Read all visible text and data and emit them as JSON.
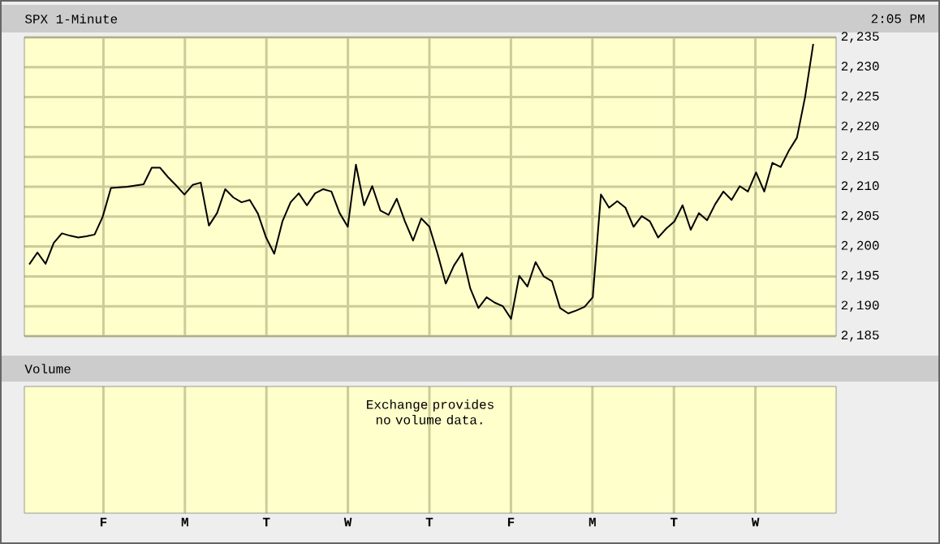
{
  "chart_data": [
    {
      "type": "line",
      "title": "SPX 1-Minute",
      "subtitle": "2:05 PM",
      "categories": [
        null,
        null,
        null,
        null,
        null,
        null,
        null,
        null,
        null,
        null,
        null,
        null,
        null,
        null,
        null,
        null,
        null,
        null,
        null,
        null,
        null,
        null,
        null,
        null,
        null,
        null,
        null,
        null,
        null,
        null,
        null,
        null,
        null,
        null,
        null,
        null,
        null,
        null,
        null,
        null,
        null,
        null,
        null,
        null,
        null,
        null,
        null,
        null,
        null,
        null,
        null,
        null,
        null,
        null,
        null,
        null,
        null,
        null,
        null,
        null,
        null,
        null,
        null,
        null,
        null,
        null,
        null,
        null,
        null,
        null,
        null,
        null,
        null,
        null,
        null,
        null,
        null,
        null,
        null,
        null,
        null,
        null,
        null,
        null,
        null,
        null,
        null,
        null,
        null,
        null,
        null,
        null,
        null,
        null,
        null,
        null,
        null
      ],
      "series": [
        {
          "color": "#000000",
          "values": [
            2197.0,
            2199.0,
            2197.1,
            2200.6,
            2202.2,
            2201.8,
            2201.5,
            2201.7,
            2202.0,
            2205.0,
            2209.8,
            2209.9,
            2210.0,
            2210.2,
            2210.4,
            2213.2,
            2213.2,
            2211.6,
            2210.2,
            2208.7,
            2210.3,
            2210.7,
            2203.5,
            2205.6,
            2209.6,
            2208.2,
            2207.4,
            2207.8,
            2205.5,
            2201.5,
            2198.8,
            2204.2,
            2207.4,
            2208.9,
            2206.9,
            2208.9,
            2209.6,
            2209.2,
            2205.6,
            2203.3,
            2213.7,
            2206.9,
            2210.1,
            2206.0,
            2205.3,
            2208.0,
            2204.2,
            2201.0,
            2204.7,
            2203.3,
            2198.8,
            2193.8,
            2196.8,
            2198.9,
            2193.0,
            2189.7,
            2191.5,
            2190.6,
            2190.0,
            2187.9,
            2195.1,
            2193.3,
            2197.4,
            2195.0,
            2194.2,
            2189.7,
            2188.8,
            2189.3,
            2189.9,
            2191.5,
            2208.7,
            2206.5,
            2207.6,
            2206.5,
            2203.3,
            2205.1,
            2204.2,
            2201.5,
            2203.0,
            2204.2,
            2206.9,
            2202.8,
            2205.6,
            2204.4,
            2207.1,
            2209.2,
            2207.8,
            2210.1,
            2209.2,
            2212.4,
            2209.2,
            2214.0,
            2213.3,
            2216.0,
            2218.2,
            2225.0,
            2233.9
          ]
        }
      ],
      "ylim": [
        2185,
        2235
      ],
      "yticks": [
        {
          "value": 2185,
          "label": "2,185"
        },
        {
          "value": 2190,
          "label": "2,190"
        },
        {
          "value": 2195,
          "label": "2,195"
        },
        {
          "value": 2200,
          "label": "2,200"
        },
        {
          "value": 2205,
          "label": "2,205"
        },
        {
          "value": 2210,
          "label": "2,210"
        },
        {
          "value": 2215,
          "label": "2,215"
        },
        {
          "value": 2220,
          "label": "2,220"
        },
        {
          "value": 2225,
          "label": "2,225"
        },
        {
          "value": 2230,
          "label": "2,230"
        },
        {
          "value": 2235,
          "label": "2,235"
        }
      ],
      "grid": true
    },
    {
      "type": "other",
      "title": "Volume",
      "annotations": [
        "Exchange provides no volume data."
      ],
      "categories": [
        "F",
        "M",
        "T",
        "W",
        "T",
        "F",
        "M",
        "T",
        "W"
      ]
    }
  ]
}
